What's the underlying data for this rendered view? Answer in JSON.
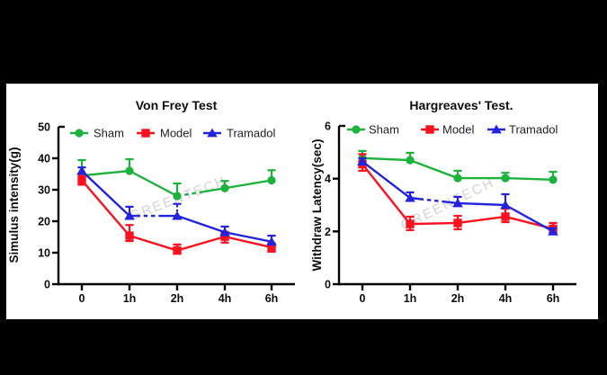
{
  "figure": {
    "background": "#000000",
    "panel_background": "#ffffff",
    "watermark_text": "GREENTECH",
    "watermark_color": "#d2d2d2"
  },
  "colors": {
    "sham": "#1cb23b",
    "model": "#fa1220",
    "tramadol": "#2323dd",
    "axis": "#000000"
  },
  "chart_data": [
    {
      "type": "line",
      "title": "Von Frey Test",
      "ylabel": "Simulus intensity(g)",
      "xlabel": "",
      "categories": [
        "0",
        "1h",
        "2h",
        "4h",
        "6h"
      ],
      "ylim": [
        0,
        50
      ],
      "yticks": [
        0,
        10,
        20,
        30,
        40,
        50
      ],
      "legend_position": "top",
      "series": [
        {
          "name": "Sham",
          "color_key": "sham",
          "marker": "circle",
          "values": [
            34.5,
            36,
            28,
            30.5,
            33
          ],
          "err_up": [
            4.9,
            3.7,
            4.0,
            2.3,
            3.2
          ],
          "err_dn": [
            0,
            0,
            0,
            0,
            0
          ]
        },
        {
          "name": "Model",
          "color_key": "model",
          "marker": "square",
          "values": [
            33,
            15.4,
            10.7,
            15.1,
            11.7
          ],
          "err_up": [
            1.4,
            3.4,
            1.9,
            1.5,
            1.3
          ],
          "err_dn": [
            1.4,
            1.7,
            1.0,
            1.9,
            1.4
          ]
        },
        {
          "name": "Tramadol",
          "color_key": "tramadol",
          "marker": "triangle",
          "values": [
            36,
            21.7,
            21.7,
            16.5,
            13.5
          ],
          "err_up": [
            1.1,
            2.9,
            3.8,
            1.8,
            1.9
          ],
          "err_dn": [
            0,
            0,
            0,
            0,
            0
          ]
        }
      ]
    },
    {
      "type": "line",
      "title": "Hargreaves' Test.",
      "ylabel": "Withdraw Latency(sec)",
      "xlabel": "",
      "categories": [
        "0",
        "1h",
        "2h",
        "4h",
        "6h"
      ],
      "ylim": [
        0,
        6
      ],
      "yticks": [
        0,
        2,
        4,
        6
      ],
      "legend_position": "top",
      "series": [
        {
          "name": "Sham",
          "color_key": "sham",
          "marker": "circle",
          "values": [
            4.78,
            4.7,
            4.02,
            4.02,
            3.96
          ],
          "err_up": [
            0.27,
            0.28,
            0.28,
            0.2,
            0.3
          ],
          "err_dn": [
            0,
            0,
            0,
            0,
            0
          ]
        },
        {
          "name": "Model",
          "color_key": "model",
          "marker": "square",
          "values": [
            4.55,
            2.28,
            2.32,
            2.56,
            2.1
          ],
          "err_up": [
            0.38,
            0.28,
            0.27,
            0.3,
            0.22
          ],
          "err_dn": [
            0.25,
            0.23,
            0.24,
            0.21,
            0.2
          ]
        },
        {
          "name": "Tramadol",
          "color_key": "tramadol",
          "marker": "triangle",
          "values": [
            4.65,
            3.27,
            3.07,
            3.0,
            2.0
          ],
          "err_up": [
            0.12,
            0.21,
            0.24,
            0.41,
            0.12
          ],
          "err_dn": [
            0,
            0,
            0,
            0,
            0
          ]
        }
      ]
    }
  ]
}
